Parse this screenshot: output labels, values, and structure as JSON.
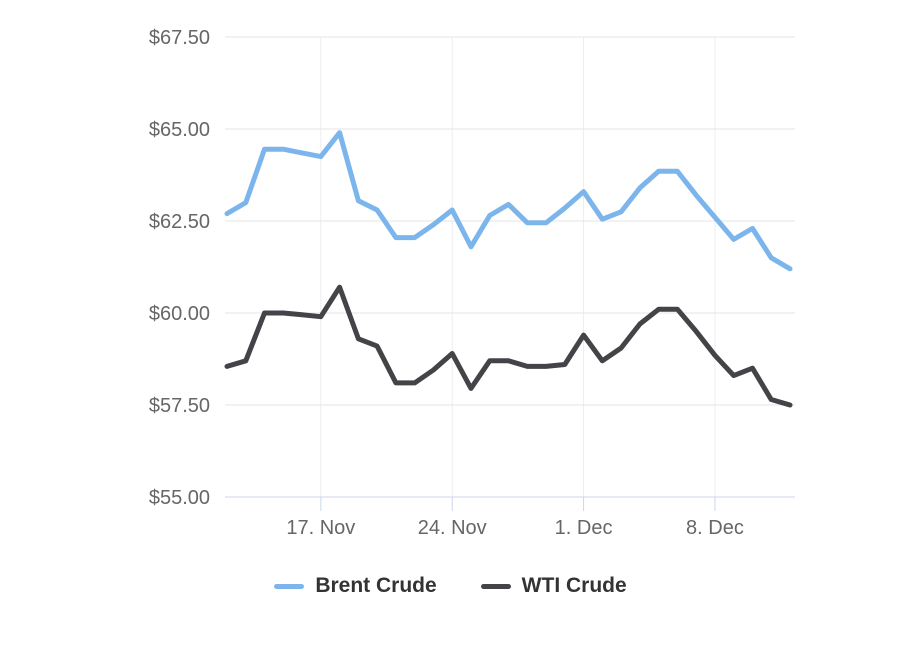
{
  "chart": {
    "background": "#ffffff",
    "legend": {
      "items": [
        {
          "label": "Brent Crude",
          "color": "#7cb5ec"
        },
        {
          "label": "WTI Crude",
          "color": "#434348"
        }
      ]
    }
  },
  "chart_data": {
    "type": "line",
    "title": "",
    "xlabel": "",
    "ylabel": "",
    "ylim": [
      55,
      67.5
    ],
    "grid": true,
    "legend_position": "bottom-center",
    "y_ticks": [
      {
        "value": 67.5,
        "label": "$67.50"
      },
      {
        "value": 65.0,
        "label": "$65.00"
      },
      {
        "value": 62.5,
        "label": "$62.50"
      },
      {
        "value": 60.0,
        "label": "$60.00"
      },
      {
        "value": 57.5,
        "label": "$57.50"
      },
      {
        "value": 55.0,
        "label": "$55.00"
      }
    ],
    "x_ticks": [
      {
        "index": 5,
        "label": "17. Nov"
      },
      {
        "index": 12,
        "label": "24. Nov"
      },
      {
        "index": 19,
        "label": "1. Dec"
      },
      {
        "index": 26,
        "label": "8. Dec"
      }
    ],
    "num_points": 31,
    "series": [
      {
        "name": "Brent Crude",
        "color": "#7cb5ec",
        "values": [
          62.7,
          63.0,
          64.45,
          64.45,
          64.35,
          64.25,
          64.9,
          63.05,
          62.8,
          62.05,
          62.05,
          62.4,
          62.8,
          61.8,
          62.65,
          62.95,
          62.45,
          62.45,
          62.85,
          63.3,
          62.55,
          62.75,
          63.4,
          63.85,
          63.85,
          63.2,
          62.6,
          62.0,
          62.3,
          61.5,
          61.2
        ]
      },
      {
        "name": "WTI Crude",
        "color": "#434348",
        "values": [
          58.55,
          58.7,
          60.0,
          60.0,
          59.95,
          59.9,
          60.7,
          59.3,
          59.1,
          58.1,
          58.1,
          58.45,
          58.9,
          57.95,
          58.7,
          58.7,
          58.55,
          58.55,
          58.6,
          59.4,
          58.7,
          59.05,
          59.7,
          60.1,
          60.1,
          59.5,
          58.85,
          58.3,
          58.5,
          57.65,
          57.5
        ]
      }
    ],
    "style_colors": {
      "h_gridline": "#e6e6e6",
      "v_gridline": "#ededed",
      "axis_line": "#ccd6eb",
      "tick_mark": "#ccd6eb",
      "axis_label": "#666666",
      "legend_text": "#333333"
    }
  }
}
